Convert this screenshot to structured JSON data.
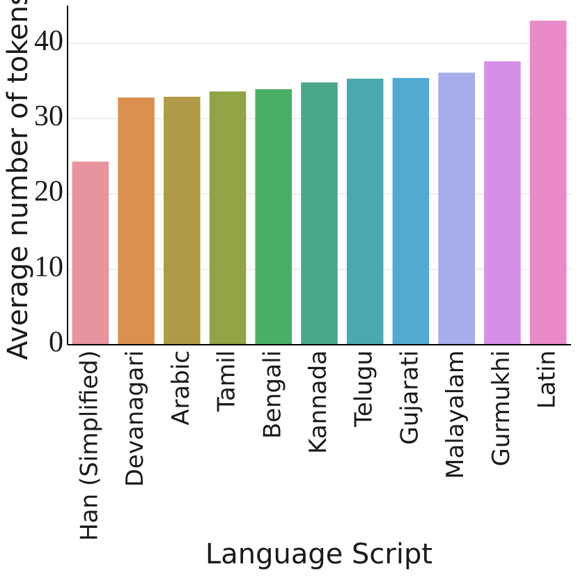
{
  "chart_data": {
    "type": "bar",
    "x_label": "Language Script",
    "y_label": "Average number of tokens",
    "categories": [
      "Han (Simplified)",
      "Devanagari",
      "Arabic",
      "Tamil",
      "Bengali",
      "Kannada",
      "Telugu",
      "Gujarati",
      "Malayalam",
      "Gurmukhi",
      "Latin"
    ],
    "values": [
      24.3,
      32.8,
      32.9,
      33.6,
      33.9,
      34.8,
      35.3,
      35.4,
      36.1,
      37.6,
      43.0
    ],
    "colors": [
      "#e8949f",
      "#dc904f",
      "#b19a47",
      "#8ea445",
      "#4aae65",
      "#4aa78c",
      "#4ba8ae",
      "#52aad3",
      "#a6adea",
      "#d58fe6",
      "#e88bc8"
    ],
    "ylim": [
      0,
      45
    ],
    "yticks": [
      0,
      10,
      20,
      30,
      40
    ],
    "grid": true
  }
}
